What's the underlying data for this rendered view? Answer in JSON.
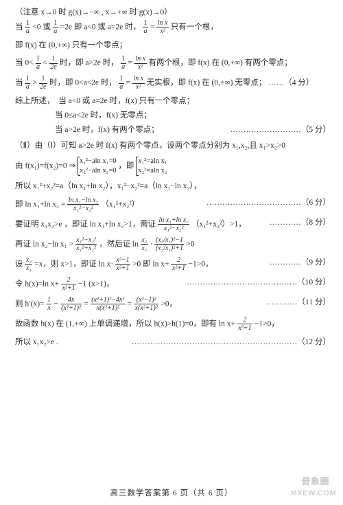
{
  "colors": {
    "text": "#2c2c2c",
    "bg": "#ffffff",
    "wm": "#cfcfcf"
  },
  "font": {
    "family": "SimSun",
    "size_pt": 11.5,
    "math_family": "Times New Roman"
  },
  "page": {
    "footer": "高三数学答案第 6 页（共 6 页）",
    "wm1": "普象圈",
    "wm2": "MXEW.COM"
  },
  "lines": {
    "l0": "（注意 x→0 时 g(x)→−∞ , x→+∞ 时 g(x)→0）",
    "l1a": "当",
    "l1b": "<0 或",
    "l1c": "=2e 即 a<0 或 a=2e 时，",
    "l1d": "只有一个根，",
    "l2": "即 f(x) 在 (0,+∞) 只有一个零点；",
    "l3a": "当 0<",
    "l3b": "时，即 a>2e 时，",
    "l3c": "有两个根，即 f(x) 在 (0,+∞) 有两个零点；",
    "l4a": "当",
    "l4b": "时，即 0<a<2e 时，",
    "l4c": "无实根，即 f(x) 在 (0,+∞) 无零点；",
    "l4s": "……（4 分）",
    "l5": "综上所述，",
    "l5a": "当 a<0 或 a=2e 时，f(x) 只有一个零点；",
    "l6": "当 0≤a<2e 时，f(x) 无零点；",
    "l7": "当 a>2e 时，f(x) 有两个零点；",
    "l7s": "………………………（5 分）",
    "l8": "（Ⅱ）由（Ⅰ）可知 a>2e 时 f(x) 有两个零点，设两个零点分别为 x₁,x₂,且 x₁>x₂>0",
    "l9a": "由 f(x₁)=f(x₂)=0 ⇒",
    "l9b": "，即",
    "s1a": "x₁²−aln x₁=0",
    "s1b": "x₂²−aln x₂=0",
    "s2a": "x₁²=aln x₁",
    "s2b": "x₂²=aln x₂",
    "l10": "所以 x₁²+x₂²=a（ln x₁+ln x₂），x₁²−x₂²=a（ln x₁−ln x₂），",
    "l11a": "即 ln x₁+ln x₂ =",
    "l11b": "（x₁²+x₂²）",
    "l11s": "………………………………（6 分）",
    "l12a": "要证明 x₁x₂>e ，即证 ln x₁+ln x₂>1，需证",
    "l12b": "（x₁²+x₂²）>1，",
    "l12s": "…………（8 分）",
    "l13a": "再证 ln x₂−ln x₁ >",
    "l13b": "，然后证 ln",
    "l13c": ">0",
    "l14a": "设",
    "l14b": "=x，则 x>1，即证 ln x·",
    "l14c": ">0 即 ln x+",
    "l14d": "−1>0，",
    "l14s": "…………（9 分）",
    "l15a": "令 h(x)=ln x+",
    "l15b": "−1 (x>1)，",
    "l15s": "……………………………………（10 分）",
    "l16a": "则 h′(x)=",
    "l16b": "−",
    "l16c": "=",
    "l16d": "=",
    "l16e": ">0，",
    "l16s": "…………（11 分）",
    "l17a": "故函数 h(x) 在 (1,+∞) 上单调递增，所以 h(x)>h(1)=0，即有 ln x+",
    "l17b": "−1>0，",
    "l18": "所以 x₁x₂>e .",
    "l18s": "………………………………………………………（12 分）",
    "f1n": "1",
    "f1d": "a",
    "f2n": "1",
    "f2d": "2e",
    "f3n": "ln x",
    "f3d": "x²",
    "f11n": "ln x₁−ln x₂",
    "f11d": "x₁²−x₂²",
    "f12n": "ln x₁+ln x₂",
    "f12d": "x₁²−x₂²",
    "f13n": "x₁²−x₂²",
    "f13d": "x₁²+x₂²",
    "f13bn": "x₂",
    "f13bd": "x₁",
    "f13cn": "(x₂/x₁)²−1",
    "f13cd": "(x₂/x₁)²+1",
    "f14n": "x₂",
    "f14d": "x₁",
    "f14bn": "x²−1",
    "f14bd": "x²+1",
    "f14cn": "2",
    "f14cd": "x²+1",
    "f15n": "2",
    "f15d": "x²+1",
    "f16an": "1",
    "f16ad": "x",
    "f16bn": "4x",
    "f16bd": "(x²+1)²",
    "f16cn": "(x²+1)²−4x²",
    "f16cd": "x(x²+1)²",
    "f16dn": "(x²−1)²",
    "f16dd": "x(x²+1)²",
    "f17n": "2",
    "f17d": "x²+1"
  }
}
